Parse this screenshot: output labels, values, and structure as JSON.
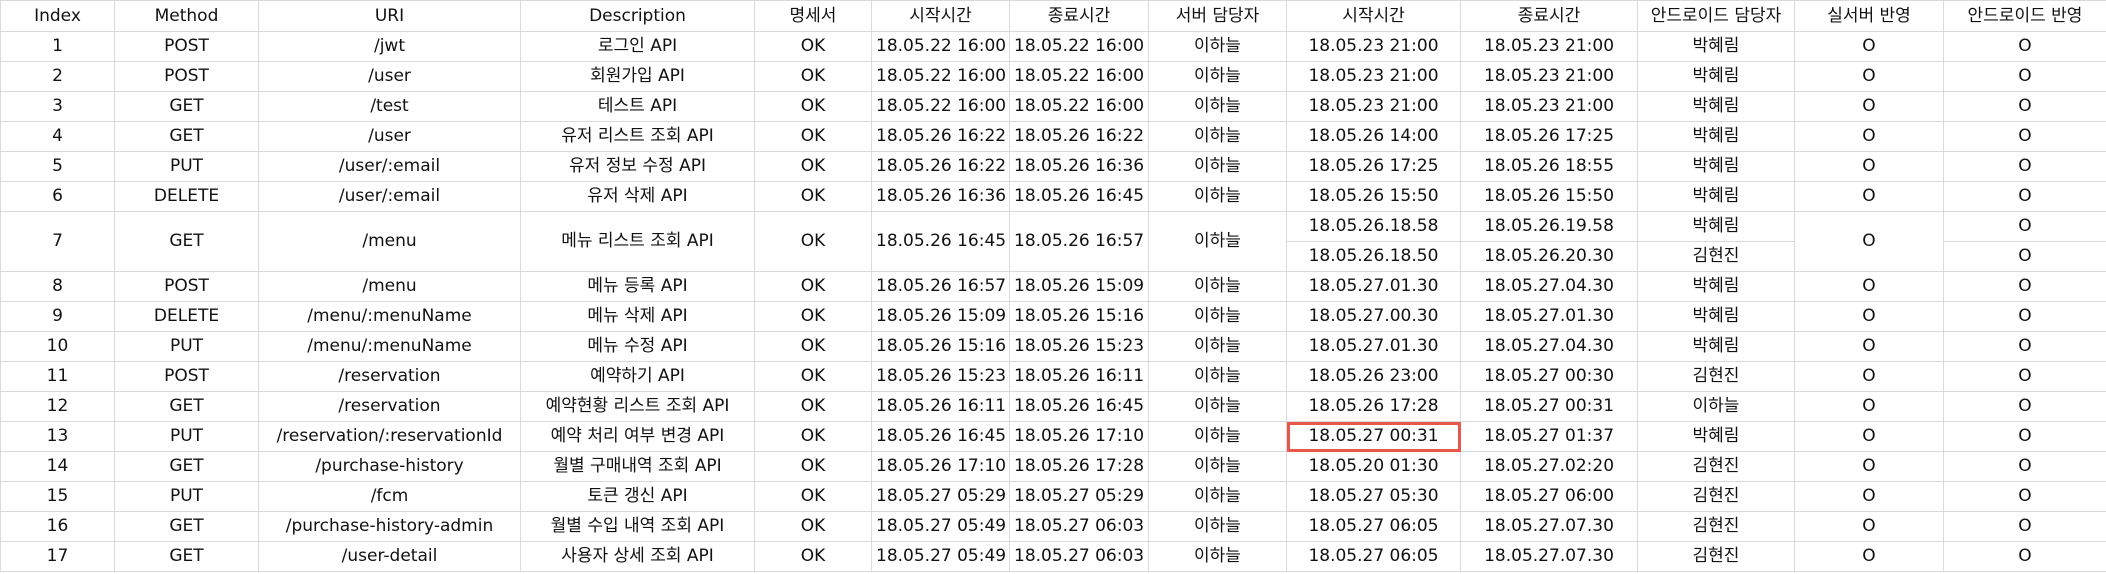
{
  "headers": [
    "Index",
    "Method",
    "URI",
    "Description",
    "명세서",
    "시작시간",
    "종료시간",
    "서버 담당자",
    "시작시간",
    "종료시간",
    "안드로이드 담당자",
    "실서버 반영",
    "안드로이드 반영"
  ],
  "rows": [
    {
      "index": "1",
      "method": "POST",
      "uri": "/jwt",
      "description": "로그인 API",
      "spec": "OK",
      "server_start": "18.05.22 16:00",
      "server_end": "18.05.22 16:00",
      "server_owner": "이하늘",
      "android_start": "18.05.23 21:00",
      "android_end": "18.05.23 21:00",
      "android_owner": "박혜림",
      "live_applied": "O",
      "android_applied": "O"
    },
    {
      "index": "2",
      "method": "POST",
      "uri": "/user",
      "description": "회원가입 API",
      "spec": "OK",
      "server_start": "18.05.22 16:00",
      "server_end": "18.05.22 16:00",
      "server_owner": "이하늘",
      "android_start": "18.05.23 21:00",
      "android_end": "18.05.23 21:00",
      "android_owner": "박혜림",
      "live_applied": "O",
      "android_applied": "O"
    },
    {
      "index": "3",
      "method": "GET",
      "uri": "/test",
      "description": "테스트 API",
      "spec": "OK",
      "server_start": "18.05.22 16:00",
      "server_end": "18.05.22 16:00",
      "server_owner": "이하늘",
      "android_start": "18.05.23 21:00",
      "android_end": "18.05.23 21:00",
      "android_owner": "박혜림",
      "live_applied": "O",
      "android_applied": "O"
    },
    {
      "index": "4",
      "method": "GET",
      "uri": "/user",
      "description": "유저 리스트 조회 API",
      "spec": "OK",
      "server_start": "18.05.26 16:22",
      "server_end": "18.05.26 16:22",
      "server_owner": "이하늘",
      "android_start": "18.05.26 14:00",
      "android_end": "18.05.26 17:25",
      "android_owner": "박혜림",
      "live_applied": "O",
      "android_applied": "O"
    },
    {
      "index": "5",
      "method": "PUT",
      "uri": "/user/:email",
      "description": "유저 정보 수정 API",
      "spec": "OK",
      "server_start": "18.05.26 16:22",
      "server_end": "18.05.26 16:36",
      "server_owner": "이하늘",
      "android_start": "18.05.26 17:25",
      "android_end": "18.05.26 18:55",
      "android_owner": "박혜림",
      "live_applied": "O",
      "android_applied": "O"
    },
    {
      "index": "6",
      "method": "DELETE",
      "uri": "/user/:email",
      "description": "유저 삭제 API",
      "spec": "OK",
      "server_start": "18.05.26 16:36",
      "server_end": "18.05.26 16:45",
      "server_owner": "이하늘",
      "android_start": "18.05.26 15:50",
      "android_end": "18.05.26 15:50",
      "android_owner": "박혜림",
      "live_applied": "O",
      "android_applied": "O"
    }
  ],
  "row7": {
    "index": "7",
    "method": "GET",
    "uri": "/menu",
    "description": "메뉴 리스트 조회 API",
    "spec": "OK",
    "server_start": "18.05.26 16:45",
    "server_end": "18.05.26 16:57",
    "server_owner": "이하늘",
    "live_applied": "O",
    "sub": [
      {
        "android_start": "18.05.26.18.58",
        "android_end": "18.05.26.19.58",
        "android_owner": "박혜림",
        "android_applied": "O"
      },
      {
        "android_start": "18.05.26.18.50",
        "android_end": "18.05.26.20.30",
        "android_owner": "김현진",
        "android_applied": "O"
      }
    ]
  },
  "rows2": [
    {
      "index": "8",
      "method": "POST",
      "uri": "/menu",
      "description": "메뉴 등록 API",
      "spec": "OK",
      "server_start": "18.05.26 16:57",
      "server_end": "18.05.26 15:09",
      "server_owner": "이하늘",
      "android_start": "18.05.27.01.30",
      "android_end": "18.05.27.04.30",
      "android_owner": "박혜림",
      "live_applied": "O",
      "android_applied": "O"
    },
    {
      "index": "9",
      "method": "DELETE",
      "uri": "/menu/:menuName",
      "description": "메뉴 삭제 API",
      "spec": "OK",
      "server_start": "18.05.26 15:09",
      "server_end": "18.05.26 15:16",
      "server_owner": "이하늘",
      "android_start": "18.05.27.00.30",
      "android_end": "18.05.27.01.30",
      "android_owner": "박혜림",
      "live_applied": "O",
      "android_applied": "O"
    },
    {
      "index": "10",
      "method": "PUT",
      "uri": "/menu/:menuName",
      "description": "메뉴 수정 API",
      "spec": "OK",
      "server_start": "18.05.26 15:16",
      "server_end": "18.05.26 15:23",
      "server_owner": "이하늘",
      "android_start": "18.05.27.01.30",
      "android_end": "18.05.27.04.30",
      "android_owner": "박혜림",
      "live_applied": "O",
      "android_applied": "O"
    },
    {
      "index": "11",
      "method": "POST",
      "uri": "/reservation",
      "description": "예약하기 API",
      "spec": "OK",
      "server_start": "18.05.26 15:23",
      "server_end": "18.05.26 16:11",
      "server_owner": "이하늘",
      "android_start": "18.05.26 23:00",
      "android_end": "18.05.27 00:30",
      "android_owner": "김현진",
      "live_applied": "O",
      "android_applied": "O"
    },
    {
      "index": "12",
      "method": "GET",
      "uri": "/reservation",
      "description": "예약현황 리스트 조회 API",
      "spec": "OK",
      "server_start": "18.05.26 16:11",
      "server_end": "18.05.26 16:45",
      "server_owner": "이하늘",
      "android_start": "18.05.26 17:28",
      "android_end": "18.05.27 00:31",
      "android_owner": "이하늘",
      "live_applied": "O",
      "android_applied": "O"
    },
    {
      "index": "13",
      "method": "PUT",
      "uri": "/reservation/:reservationId",
      "description": "예약 처리 여부 변경 API",
      "spec": "OK",
      "server_start": "18.05.26 16:45",
      "server_end": "18.05.26 17:10",
      "server_owner": "이하늘",
      "android_start": "18.05.27 00:31",
      "android_end": "18.05.27 01:37",
      "android_owner": "박혜림",
      "live_applied": "O",
      "android_applied": "O"
    },
    {
      "index": "14",
      "method": "GET",
      "uri": "/purchase-history",
      "description": "월별 구매내역 조회 API",
      "spec": "OK",
      "server_start": "18.05.26 17:10",
      "server_end": "18.05.26 17:28",
      "server_owner": "이하늘",
      "android_start": "18.05.20 01:30",
      "android_end": "18.05.27.02:20",
      "android_owner": "김현진",
      "live_applied": "O",
      "android_applied": "O"
    },
    {
      "index": "15",
      "method": "PUT",
      "uri": "/fcm",
      "description": "토큰 갱신 API",
      "spec": "OK",
      "server_start": "18.05.27 05:29",
      "server_end": "18.05.27 05:29",
      "server_owner": "이하늘",
      "android_start": "18.05.27 05:30",
      "android_end": "18.05.27 06:00",
      "android_owner": "김현진",
      "live_applied": "O",
      "android_applied": "O"
    },
    {
      "index": "16",
      "method": "GET",
      "uri": "/purchase-history-admin",
      "description": "월별 수입 내역 조회 API",
      "spec": "OK",
      "server_start": "18.05.27 05:49",
      "server_end": "18.05.27 06:03",
      "server_owner": "이하늘",
      "android_start": "18.05.27 06:05",
      "android_end": "18.05.27.07.30",
      "android_owner": "김현진",
      "live_applied": "O",
      "android_applied": "O"
    },
    {
      "index": "17",
      "method": "GET",
      "uri": "/user-detail",
      "description": "사용자 상세 조회 API",
      "spec": "OK",
      "server_start": "18.05.27 05:49",
      "server_end": "18.05.27 06:03",
      "server_owner": "이하늘",
      "android_start": "18.05.27 06:05",
      "android_end": "18.05.27.07.30",
      "android_owner": "김현진",
      "live_applied": "O",
      "android_applied": "O"
    }
  ]
}
